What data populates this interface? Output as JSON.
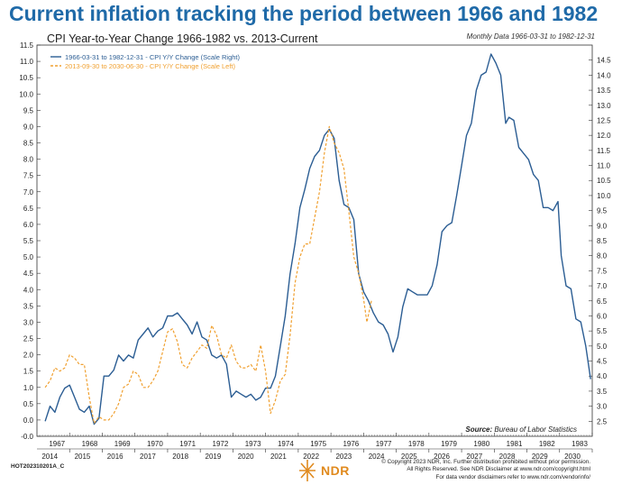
{
  "header": {
    "headline": "Current inflation tracking the period between 1966 and 1982",
    "subtitle": "CPI Year-to-Year Change 1966-1982 vs. 2013-Current",
    "monthly_note": "Monthly Data 1966-03-31 to 1982-12-31"
  },
  "footer": {
    "source_label": "Source:",
    "source_value": "Bureau of Labor Statistics",
    "code": "HOT202310201A_C",
    "logo_text": "NDR",
    "copyright_lines": [
      "© Copyright 2023 NDR, Inc. Further distribution prohibited without prior permission.",
      "All Rights Reserved. See NDR Disclaimer at www.ndr.com/copyright.html",
      "For data vendor disclaimers refer to www.ndr.com/vendorinfo/"
    ]
  },
  "colors": {
    "headline": "#1f6aa8",
    "series_1966": "#2b5d93",
    "series_2013": "#f0a030",
    "logo": "#e08a1e"
  },
  "chart_data": {
    "type": "line",
    "legend_position": "top-left",
    "grid": false,
    "left_axis": {
      "min": -0.5,
      "max": 11.5,
      "ticks": [
        "-0.0",
        "0.0",
        "0.5",
        "1.0",
        "1.5",
        "2.0",
        "2.5",
        "3.0",
        "3.5",
        "4.0",
        "4.5",
        "5.0",
        "5.5",
        "6.0",
        "6.5",
        "7.0",
        "7.5",
        "8.0",
        "8.5",
        "9.0",
        "9.5",
        "10.0",
        "10.5",
        "11.0",
        "11.5"
      ]
    },
    "right_axis": {
      "min": 2.0,
      "max": 15.0,
      "ticks": [
        "2.5",
        "3.0",
        "3.5",
        "4.0",
        "4.5",
        "5.0",
        "5.5",
        "6.0",
        "6.5",
        "7.0",
        "7.5",
        "8.0",
        "8.5",
        "9.0",
        "9.5",
        "10.0",
        "10.5",
        "11.0",
        "11.5",
        "12.0",
        "12.5",
        "13.0",
        "13.5",
        "14.0",
        "14.5"
      ]
    },
    "x_axis": {
      "min": 1966.0,
      "max": 1983.0,
      "top_row_labels": [
        "1967",
        "1968",
        "1969",
        "1970",
        "1971",
        "1972",
        "1973",
        "1974",
        "1975",
        "1976",
        "1977",
        "1978",
        "1979",
        "1980",
        "1981",
        "1982",
        "1983"
      ],
      "bottom_row_labels": [
        "2014",
        "2015",
        "2016",
        "2017",
        "2018",
        "2019",
        "2020",
        "2021",
        "2022",
        "2023",
        "2024",
        "2025",
        "2026",
        "2027",
        "2028",
        "2029",
        "2030"
      ]
    },
    "series": [
      {
        "name": "1966-03-31 to 1982-12-31 - CPI Y/Y Change (Scale Right)",
        "axis": "right",
        "style": "solid",
        "x": [
          1966.25,
          1966.4,
          1966.55,
          1966.7,
          1966.85,
          1967.0,
          1967.15,
          1967.3,
          1967.45,
          1967.6,
          1967.75,
          1967.9,
          1968.05,
          1968.2,
          1968.35,
          1968.5,
          1968.65,
          1968.8,
          1968.95,
          1969.1,
          1969.25,
          1969.4,
          1969.55,
          1969.7,
          1969.85,
          1970.0,
          1970.15,
          1970.3,
          1970.45,
          1970.6,
          1970.75,
          1970.9,
          1971.05,
          1971.2,
          1971.35,
          1971.5,
          1971.65,
          1971.8,
          1971.95,
          1972.1,
          1972.25,
          1972.4,
          1972.55,
          1972.7,
          1972.85,
          1973.0,
          1973.15,
          1973.3,
          1973.45,
          1973.6,
          1973.75,
          1973.9,
          1974.05,
          1974.2,
          1974.35,
          1974.5,
          1974.65,
          1974.8,
          1974.95,
          1975.1,
          1975.25,
          1975.4,
          1975.55,
          1975.7,
          1975.85,
          1976.0,
          1976.15,
          1976.3,
          1976.45,
          1976.6,
          1976.75,
          1976.9,
          1977.05,
          1977.2,
          1977.35,
          1977.5,
          1977.65,
          1977.8,
          1977.95,
          1978.1,
          1978.25,
          1978.4,
          1978.55,
          1978.7,
          1978.85,
          1979.0,
          1979.15,
          1979.3,
          1979.45,
          1979.6,
          1979.75,
          1979.9,
          1980.05,
          1980.2,
          1980.35,
          1980.45,
          1980.6,
          1980.75,
          1980.9,
          1981.05,
          1981.2,
          1981.35,
          1981.5,
          1981.65,
          1981.8,
          1981.95,
          1982.05,
          1982.2,
          1982.35,
          1982.5,
          1982.65,
          1982.8,
          1982.95
        ],
        "y": [
          2.5,
          3.0,
          2.8,
          3.3,
          3.6,
          3.7,
          3.3,
          2.9,
          2.8,
          3.0,
          2.4,
          2.6,
          4.0,
          4.0,
          4.2,
          4.7,
          4.5,
          4.7,
          4.6,
          5.2,
          5.4,
          5.6,
          5.3,
          5.5,
          5.6,
          6.0,
          6.0,
          6.1,
          5.9,
          5.7,
          5.4,
          5.8,
          5.3,
          5.2,
          4.7,
          4.6,
          4.7,
          4.4,
          3.3,
          3.5,
          3.4,
          3.3,
          3.4,
          3.2,
          3.3,
          3.6,
          3.6,
          4.0,
          5.0,
          6.0,
          7.4,
          8.4,
          9.6,
          10.2,
          10.9,
          11.3,
          11.5,
          12.0,
          12.2,
          11.9,
          10.5,
          9.7,
          9.6,
          9.2,
          7.4,
          6.8,
          6.5,
          6.1,
          5.8,
          5.7,
          5.4,
          4.8,
          5.3,
          6.3,
          6.9,
          6.8,
          6.7,
          6.7,
          6.7,
          7.0,
          7.7,
          8.8,
          9.0,
          9.1,
          10.0,
          11.0,
          12.0,
          12.4,
          13.5,
          14.0,
          14.1,
          14.7,
          14.4,
          14.0,
          12.4,
          12.6,
          12.5,
          11.6,
          11.4,
          11.2,
          10.7,
          10.5,
          9.6,
          9.6,
          9.5,
          9.8,
          8.0,
          7.0,
          6.9,
          5.9,
          5.8,
          5.0,
          3.9
        ]
      },
      {
        "name": "2013-09-30 to 2030-06-30 - CPI Y/Y Change (Scale Left)",
        "axis": "left",
        "style": "dashed",
        "x": [
          1966.25,
          1966.4,
          1966.55,
          1966.7,
          1966.85,
          1967.0,
          1967.15,
          1967.3,
          1967.45,
          1967.6,
          1967.75,
          1967.9,
          1968.05,
          1968.2,
          1968.35,
          1968.5,
          1968.65,
          1968.8,
          1968.95,
          1969.1,
          1969.25,
          1969.4,
          1969.55,
          1969.7,
          1969.85,
          1970.0,
          1970.15,
          1970.3,
          1970.45,
          1970.6,
          1970.75,
          1970.9,
          1971.05,
          1971.2,
          1971.35,
          1971.5,
          1971.65,
          1971.8,
          1971.95,
          1972.1,
          1972.25,
          1972.4,
          1972.55,
          1972.7,
          1972.85,
          1973.0,
          1973.15,
          1973.3,
          1973.45,
          1973.6,
          1973.75,
          1973.9,
          1974.05,
          1974.2,
          1974.35,
          1974.5,
          1974.65,
          1974.8,
          1974.95,
          1975.1,
          1975.25,
          1975.4,
          1975.55,
          1975.7,
          1975.85,
          1976.0,
          1976.1,
          1976.25
        ],
        "y": [
          1.0,
          1.2,
          1.6,
          1.5,
          1.6,
          2.0,
          1.9,
          1.7,
          1.7,
          0.7,
          -0.1,
          0.1,
          0.0,
          0.0,
          0.2,
          0.5,
          1.0,
          1.1,
          1.5,
          1.4,
          1.0,
          1.0,
          1.2,
          1.5,
          2.1,
          2.7,
          2.8,
          2.4,
          1.7,
          1.6,
          1.9,
          2.1,
          2.3,
          2.2,
          2.9,
          2.6,
          2.0,
          1.9,
          2.3,
          1.8,
          1.6,
          1.6,
          1.7,
          1.5,
          2.3,
          1.5,
          0.2,
          0.6,
          1.2,
          1.4,
          2.6,
          4.2,
          5.0,
          5.4,
          5.4,
          6.2,
          7.0,
          8.2,
          9.0,
          8.5,
          8.2,
          7.7,
          6.4,
          5.0,
          4.5,
          3.7,
          3.0,
          3.7
        ]
      }
    ]
  }
}
